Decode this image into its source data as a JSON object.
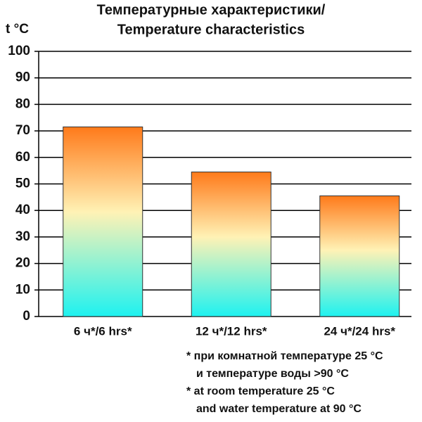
{
  "chart_data": {
    "type": "bar",
    "title": [
      "Температурные характеристики/",
      "Temperature characteristics"
    ],
    "y_label": "t °C",
    "categories": [
      "6 ч*/6 hrs*",
      "12 ч*/12 hrs*",
      "24 ч*/24 hrs*"
    ],
    "values": [
      71.5,
      54.5,
      45.5
    ],
    "gradient": [
      "#ff7a1a",
      "#fff2b5",
      "#1ef2f0"
    ],
    "ylim": [
      0,
      100
    ],
    "yticks": [
      0,
      10,
      20,
      30,
      40,
      50,
      60,
      70,
      80,
      90,
      100
    ],
    "grid": true,
    "notes": [
      "* при комнатной температуре 25 °C",
      "и температуре воды >90 °C",
      "* at room temperature 25 °C",
      "and water temperature at 90 °C"
    ]
  }
}
